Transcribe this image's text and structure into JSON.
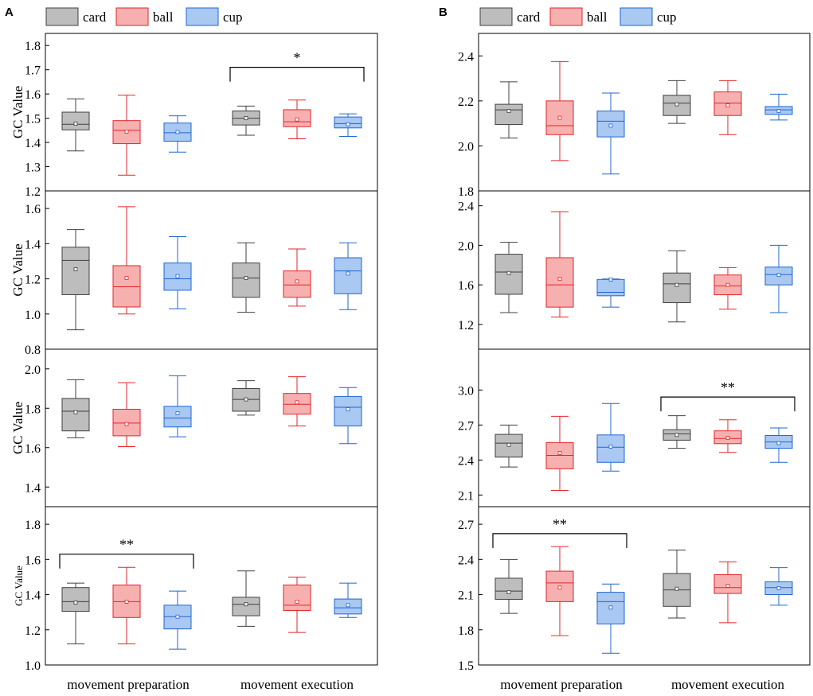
{
  "legend": [
    {
      "name": "card",
      "fill": "#bdbdbd",
      "stroke": "#404040"
    },
    {
      "name": "ball",
      "fill": "#f7b0b0",
      "stroke": "#e3262a"
    },
    {
      "name": "cup",
      "fill": "#a9c8f2",
      "stroke": "#2166d1"
    }
  ],
  "x_categories": [
    "movement preparation",
    "movement execution"
  ],
  "chart_data": {
    "type": "box",
    "panels": [
      {
        "label": "A",
        "series": [
          "card",
          "ball",
          "cup"
        ],
        "subplots": [
          {
            "ylabel": "GC Value",
            "ylim": [
              1.2,
              1.85
            ],
            "ticks": [
              1.2,
              1.3,
              1.4,
              1.5,
              1.6,
              1.7,
              1.8
            ],
            "show_bottom_tick": true,
            "boxes": [
              {
                "series": "card",
                "group": "movement preparation",
                "min": 1.365,
                "q1": 1.452,
                "median": 1.475,
                "q3": 1.525,
                "max": 1.58,
                "mean": 1.478
              },
              {
                "series": "ball",
                "group": "movement preparation",
                "min": 1.265,
                "q1": 1.395,
                "median": 1.45,
                "q3": 1.49,
                "max": 1.595,
                "mean": 1.445
              },
              {
                "series": "cup",
                "group": "movement preparation",
                "min": 1.36,
                "q1": 1.405,
                "median": 1.44,
                "q3": 1.48,
                "max": 1.51,
                "mean": 1.443
              },
              {
                "series": "card",
                "group": "movement execution",
                "min": 1.43,
                "q1": 1.472,
                "median": 1.5,
                "q3": 1.53,
                "max": 1.55,
                "mean": 1.5
              },
              {
                "series": "ball",
                "group": "movement execution",
                "min": 1.415,
                "q1": 1.465,
                "median": 1.485,
                "q3": 1.535,
                "max": 1.575,
                "mean": 1.495
              },
              {
                "series": "cup",
                "group": "movement execution",
                "min": 1.425,
                "q1": 1.46,
                "median": 1.478,
                "q3": 1.505,
                "max": 1.518,
                "mean": 1.475
              }
            ],
            "significance": {
              "label": "*",
              "group": "movement execution",
              "y": 1.71
            }
          },
          {
            "ylabel": "GC Value",
            "ylim": [
              0.8,
              1.7
            ],
            "ticks": [
              0.8,
              1.0,
              1.2,
              1.4,
              1.6
            ],
            "show_bottom_tick": true,
            "boxes": [
              {
                "series": "card",
                "group": "movement preparation",
                "min": 0.91,
                "q1": 1.11,
                "median": 1.305,
                "q3": 1.38,
                "max": 1.48,
                "mean": 1.255
              },
              {
                "series": "ball",
                "group": "movement preparation",
                "min": 1.0,
                "q1": 1.04,
                "median": 1.155,
                "q3": 1.275,
                "max": 1.61,
                "mean": 1.205
              },
              {
                "series": "cup",
                "group": "movement preparation",
                "min": 1.03,
                "q1": 1.135,
                "median": 1.2,
                "q3": 1.29,
                "max": 1.44,
                "mean": 1.215
              },
              {
                "series": "card",
                "group": "movement execution",
                "min": 1.01,
                "q1": 1.095,
                "median": 1.205,
                "q3": 1.29,
                "max": 1.405,
                "mean": 1.205
              },
              {
                "series": "ball",
                "group": "movement execution",
                "min": 1.045,
                "q1": 1.095,
                "median": 1.165,
                "q3": 1.245,
                "max": 1.37,
                "mean": 1.185
              },
              {
                "series": "cup",
                "group": "movement execution",
                "min": 1.025,
                "q1": 1.115,
                "median": 1.245,
                "q3": 1.32,
                "max": 1.405,
                "mean": 1.23
              }
            ]
          },
          {
            "ylabel": "GC Value",
            "ylim": [
              1.3,
              2.1
            ],
            "ticks": [
              1.4,
              1.6,
              1.8,
              2.0
            ],
            "show_bottom_tick": false,
            "boxes": [
              {
                "series": "card",
                "group": "movement preparation",
                "min": 1.65,
                "q1": 1.685,
                "median": 1.785,
                "q3": 1.85,
                "max": 1.945,
                "mean": 1.78
              },
              {
                "series": "ball",
                "group": "movement preparation",
                "min": 1.605,
                "q1": 1.66,
                "median": 1.725,
                "q3": 1.795,
                "max": 1.93,
                "mean": 1.72
              },
              {
                "series": "cup",
                "group": "movement preparation",
                "min": 1.655,
                "q1": 1.705,
                "median": 1.75,
                "q3": 1.81,
                "max": 1.965,
                "mean": 1.775
              },
              {
                "series": "card",
                "group": "movement execution",
                "min": 1.765,
                "q1": 1.785,
                "median": 1.845,
                "q3": 1.9,
                "max": 1.94,
                "mean": 1.845
              },
              {
                "series": "ball",
                "group": "movement execution",
                "min": 1.71,
                "q1": 1.77,
                "median": 1.82,
                "q3": 1.875,
                "max": 1.96,
                "mean": 1.83
              },
              {
                "series": "cup",
                "group": "movement execution",
                "min": 1.62,
                "q1": 1.71,
                "median": 1.805,
                "q3": 1.86,
                "max": 1.905,
                "mean": 1.795
              }
            ]
          },
          {
            "ylabel": "GC Value",
            "ylim": [
              1.0,
              1.9
            ],
            "ticks": [
              1.0,
              1.2,
              1.4,
              1.6,
              1.8
            ],
            "show_bottom_tick": true,
            "boxes": [
              {
                "series": "card",
                "group": "movement preparation",
                "min": 1.12,
                "q1": 1.305,
                "median": 1.36,
                "q3": 1.44,
                "max": 1.465,
                "mean": 1.355
              },
              {
                "series": "ball",
                "group": "movement preparation",
                "min": 1.12,
                "q1": 1.27,
                "median": 1.36,
                "q3": 1.455,
                "max": 1.555,
                "mean": 1.36
              },
              {
                "series": "cup",
                "group": "movement preparation",
                "min": 1.09,
                "q1": 1.205,
                "median": 1.275,
                "q3": 1.34,
                "max": 1.42,
                "mean": 1.275
              },
              {
                "series": "card",
                "group": "movement execution",
                "min": 1.22,
                "q1": 1.28,
                "median": 1.345,
                "q3": 1.385,
                "max": 1.535,
                "mean": 1.345
              },
              {
                "series": "ball",
                "group": "movement execution",
                "min": 1.185,
                "q1": 1.31,
                "median": 1.34,
                "q3": 1.455,
                "max": 1.5,
                "mean": 1.36
              },
              {
                "series": "cup",
                "group": "movement execution",
                "min": 1.27,
                "q1": 1.29,
                "median": 1.325,
                "q3": 1.375,
                "max": 1.465,
                "mean": 1.34
              }
            ],
            "significance": {
              "label": "**",
              "group": "movement preparation",
              "y": 1.63
            }
          }
        ]
      },
      {
        "label": "B",
        "series": [
          "card",
          "ball",
          "cup"
        ],
        "subplots": [
          {
            "ylim": [
              1.8,
              2.5
            ],
            "ticks": [
              1.8,
              2.0,
              2.2,
              2.4
            ],
            "show_bottom_tick": true,
            "boxes": [
              {
                "series": "card",
                "group": "movement preparation",
                "min": 2.035,
                "q1": 2.095,
                "median": 2.16,
                "q3": 2.185,
                "max": 2.285,
                "mean": 2.155
              },
              {
                "series": "ball",
                "group": "movement preparation",
                "min": 1.935,
                "q1": 2.05,
                "median": 2.09,
                "q3": 2.2,
                "max": 2.375,
                "mean": 2.125
              },
              {
                "series": "cup",
                "group": "movement preparation",
                "min": 1.875,
                "q1": 2.04,
                "median": 2.11,
                "q3": 2.155,
                "max": 2.235,
                "mean": 2.09
              },
              {
                "series": "card",
                "group": "movement execution",
                "min": 2.1,
                "q1": 2.135,
                "median": 2.19,
                "q3": 2.225,
                "max": 2.29,
                "mean": 2.185
              },
              {
                "series": "ball",
                "group": "movement execution",
                "min": 2.05,
                "q1": 2.135,
                "median": 2.19,
                "q3": 2.24,
                "max": 2.29,
                "mean": 2.18
              },
              {
                "series": "cup",
                "group": "movement execution",
                "min": 2.115,
                "q1": 2.14,
                "median": 2.16,
                "q3": 2.175,
                "max": 2.23,
                "mean": 2.155
              }
            ]
          },
          {
            "ylim": [
              0.95,
              2.55
            ],
            "ticks": [
              1.2,
              1.6,
              2.0,
              2.4
            ],
            "show_bottom_tick": false,
            "boxes": [
              {
                "series": "card",
                "group": "movement preparation",
                "min": 1.32,
                "q1": 1.505,
                "median": 1.73,
                "q3": 1.91,
                "max": 2.03,
                "mean": 1.72
              },
              {
                "series": "ball",
                "group": "movement preparation",
                "min": 1.275,
                "q1": 1.375,
                "median": 1.6,
                "q3": 1.875,
                "max": 2.34,
                "mean": 1.66
              },
              {
                "series": "cup",
                "group": "movement preparation",
                "min": 1.375,
                "q1": 1.49,
                "median": 1.525,
                "q3": 1.655,
                "max": 1.66,
                "mean": 1.655
              },
              {
                "series": "card",
                "group": "movement execution",
                "min": 1.225,
                "q1": 1.42,
                "median": 1.61,
                "q3": 1.72,
                "max": 1.945,
                "mean": 1.6
              },
              {
                "series": "ball",
                "group": "movement execution",
                "min": 1.355,
                "q1": 1.5,
                "median": 1.59,
                "q3": 1.7,
                "max": 1.775,
                "mean": 1.6
              },
              {
                "series": "cup",
                "group": "movement execution",
                "min": 1.32,
                "q1": 1.6,
                "median": 1.705,
                "q3": 1.78,
                "max": 2.0,
                "mean": 1.7
              }
            ]
          },
          {
            "ylim": [
              2.0,
              3.35
            ],
            "ticks": [
              2.1,
              2.4,
              2.7,
              3.0
            ],
            "show_bottom_tick": false,
            "boxes": [
              {
                "series": "card",
                "group": "movement preparation",
                "min": 2.34,
                "q1": 2.425,
                "median": 2.545,
                "q3": 2.62,
                "max": 2.7,
                "mean": 2.53
              },
              {
                "series": "ball",
                "group": "movement preparation",
                "min": 2.14,
                "q1": 2.325,
                "median": 2.44,
                "q3": 2.55,
                "max": 2.775,
                "mean": 2.46
              },
              {
                "series": "cup",
                "group": "movement preparation",
                "min": 2.305,
                "q1": 2.38,
                "median": 2.51,
                "q3": 2.615,
                "max": 2.885,
                "mean": 2.515
              },
              {
                "series": "card",
                "group": "movement execution",
                "min": 2.5,
                "q1": 2.57,
                "median": 2.625,
                "q3": 2.66,
                "max": 2.78,
                "mean": 2.615
              },
              {
                "series": "ball",
                "group": "movement execution",
                "min": 2.465,
                "q1": 2.54,
                "median": 2.585,
                "q3": 2.65,
                "max": 2.745,
                "mean": 2.59
              },
              {
                "series": "cup",
                "group": "movement execution",
                "min": 2.38,
                "q1": 2.5,
                "median": 2.555,
                "q3": 2.61,
                "max": 2.675,
                "mean": 2.545
              }
            ],
            "significance": {
              "label": "**",
              "group": "movement execution",
              "y": 2.94
            }
          },
          {
            "ylim": [
              1.5,
              2.85
            ],
            "ticks": [
              1.5,
              1.8,
              2.1,
              2.4,
              2.7
            ],
            "show_bottom_tick": true,
            "boxes": [
              {
                "series": "card",
                "group": "movement preparation",
                "min": 1.94,
                "q1": 2.06,
                "median": 2.13,
                "q3": 2.24,
                "max": 2.4,
                "mean": 2.12
              },
              {
                "series": "ball",
                "group": "movement preparation",
                "min": 1.75,
                "q1": 2.04,
                "median": 2.2,
                "q3": 2.3,
                "max": 2.51,
                "mean": 2.16
              },
              {
                "series": "cup",
                "group": "movement preparation",
                "min": 1.6,
                "q1": 1.85,
                "median": 2.04,
                "q3": 2.12,
                "max": 2.19,
                "mean": 1.99
              },
              {
                "series": "card",
                "group": "movement execution",
                "min": 1.9,
                "q1": 2.0,
                "median": 2.14,
                "q3": 2.28,
                "max": 2.48,
                "mean": 2.15
              },
              {
                "series": "ball",
                "group": "movement execution",
                "min": 1.86,
                "q1": 2.11,
                "median": 2.16,
                "q3": 2.27,
                "max": 2.38,
                "mean": 2.175
              },
              {
                "series": "cup",
                "group": "movement execution",
                "min": 2.01,
                "q1": 2.1,
                "median": 2.16,
                "q3": 2.21,
                "max": 2.33,
                "mean": 2.155
              }
            ],
            "significance": {
              "label": "**",
              "group": "movement preparation",
              "y": 2.62
            }
          }
        ]
      }
    ]
  }
}
